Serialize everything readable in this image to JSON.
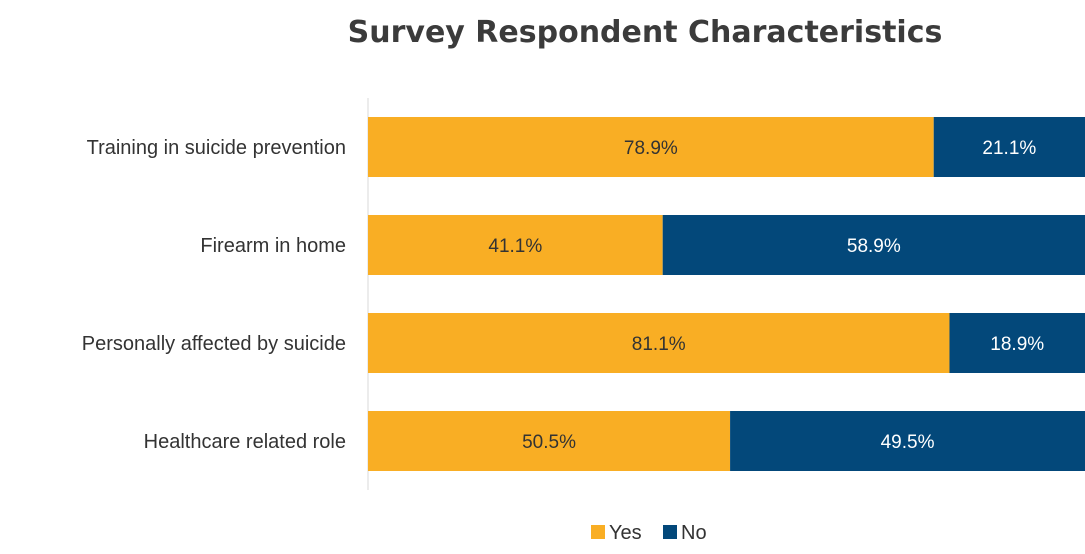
{
  "chart_data": {
    "type": "bar",
    "orientation": "horizontal",
    "stacked": true,
    "title": "Survey Respondent Characteristics",
    "categories": [
      "Training in suicide prevention",
      "Firearm in home",
      "Personally affected by suicide",
      "Healthcare related role"
    ],
    "series": [
      {
        "name": "Yes",
        "values": [
          78.9,
          41.1,
          81.1,
          50.5
        ],
        "labels": [
          "78.9%",
          "41.1%",
          "81.1%",
          "50.5%"
        ],
        "color": "#f9ae24",
        "label_color": "#333333"
      },
      {
        "name": "No",
        "values": [
          21.1,
          58.9,
          18.9,
          49.5
        ],
        "labels": [
          "21.1%",
          "58.9%",
          "18.9%",
          "49.5%"
        ],
        "color": "#03487a",
        "label_color": "#ffffff"
      }
    ],
    "xlim": [
      0,
      100
    ],
    "grid": false,
    "legend": "bottom"
  }
}
